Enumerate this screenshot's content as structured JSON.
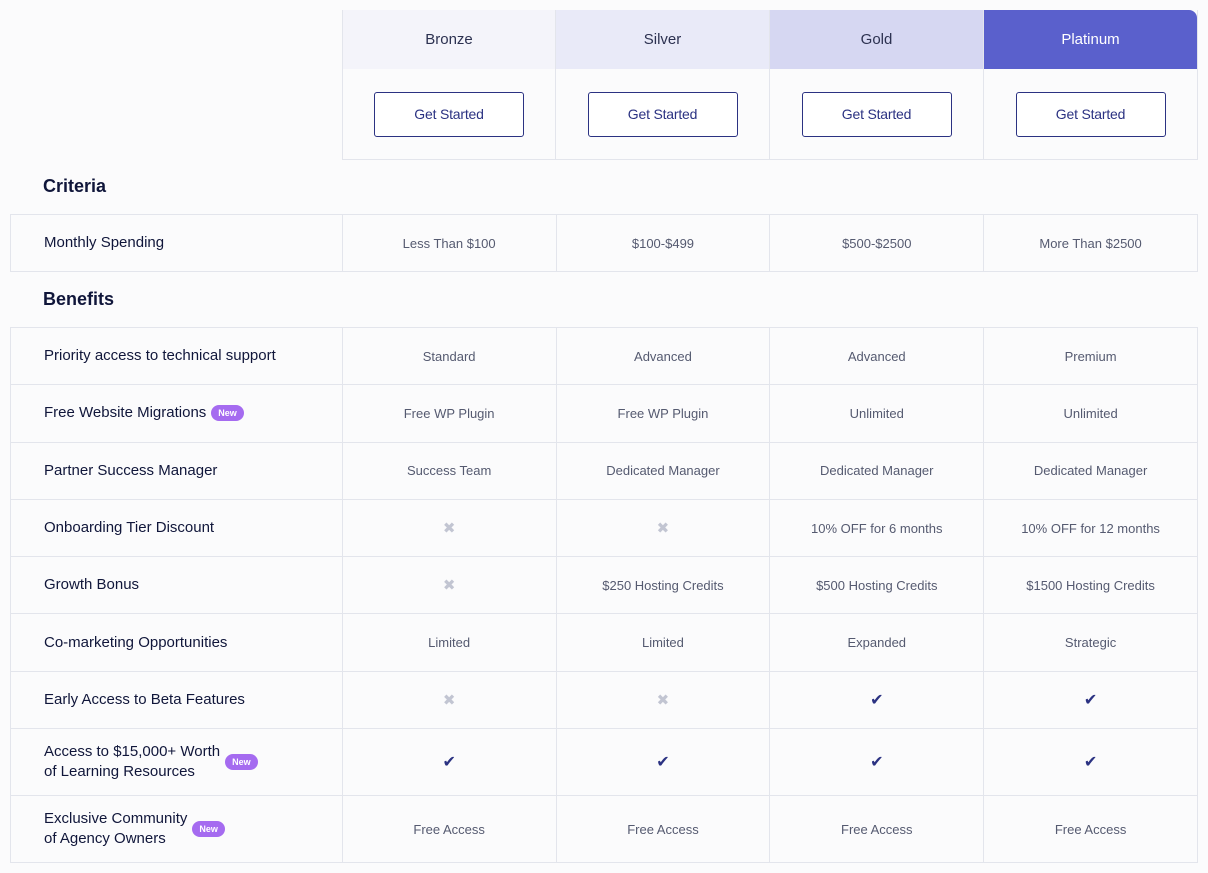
{
  "tiers": [
    {
      "name": "Bronze",
      "button": "Get Started",
      "header_bg": "#f4f4fa",
      "header_color": "#2c3150"
    },
    {
      "name": "Silver",
      "button": "Get Started",
      "header_bg": "#e9eaf8",
      "header_color": "#2c3150"
    },
    {
      "name": "Gold",
      "button": "Get Started",
      "header_bg": "#d6d7f2",
      "header_color": "#2c3150"
    },
    {
      "name": "Platinum",
      "button": "Get Started",
      "header_bg": "#5a60cc",
      "header_color": "#ffffff"
    }
  ],
  "sections": {
    "criteria": "Criteria",
    "benefits": "Benefits"
  },
  "criteria_rows": [
    {
      "label": "Monthly Spending",
      "values": [
        "Less Than $100",
        "$100-$499",
        "$500-$2500",
        "More Than $2500"
      ]
    }
  ],
  "benefit_rows": [
    {
      "label": "Priority access to technical support",
      "values": [
        "Standard",
        "Advanced",
        "Advanced",
        "Premium"
      ]
    },
    {
      "label": "Free Website Migrations",
      "badge": "New",
      "values": [
        "Free WP Plugin",
        "Free WP Plugin",
        "Unlimited",
        "Unlimited"
      ]
    },
    {
      "label": "Partner Success Manager",
      "values": [
        "Success Team",
        "Dedicated Manager",
        "Dedicated Manager",
        "Dedicated Manager"
      ]
    },
    {
      "label": "Onboarding Tier Discount",
      "values": [
        "x-icon",
        "x-icon",
        "10% OFF for 6 months",
        "10% OFF for 12 months"
      ]
    },
    {
      "label": "Growth Bonus",
      "values": [
        "x-icon",
        "$250 Hosting Credits",
        "$500 Hosting Credits",
        "$1500 Hosting Credits"
      ]
    },
    {
      "label": "Co-marketing Opportunities",
      "values": [
        "Limited",
        "Limited",
        "Expanded",
        "Strategic"
      ]
    },
    {
      "label": "Early Access to Beta Features",
      "values": [
        "x-icon",
        "x-icon",
        "check-icon",
        "check-icon"
      ]
    },
    {
      "label": "Access to $15,000+ Worth",
      "label2": "of Learning Resources",
      "badge": "New",
      "tall": true,
      "values": [
        "check-icon",
        "check-icon",
        "check-icon",
        "check-icon"
      ]
    },
    {
      "label": "Exclusive Community",
      "label2": "of Agency Owners",
      "badge": "New",
      "tall": true,
      "values": [
        "Free Access",
        "Free Access",
        "Free Access",
        "Free Access"
      ]
    }
  ],
  "icons": {
    "x": "✖",
    "check": "✔"
  }
}
